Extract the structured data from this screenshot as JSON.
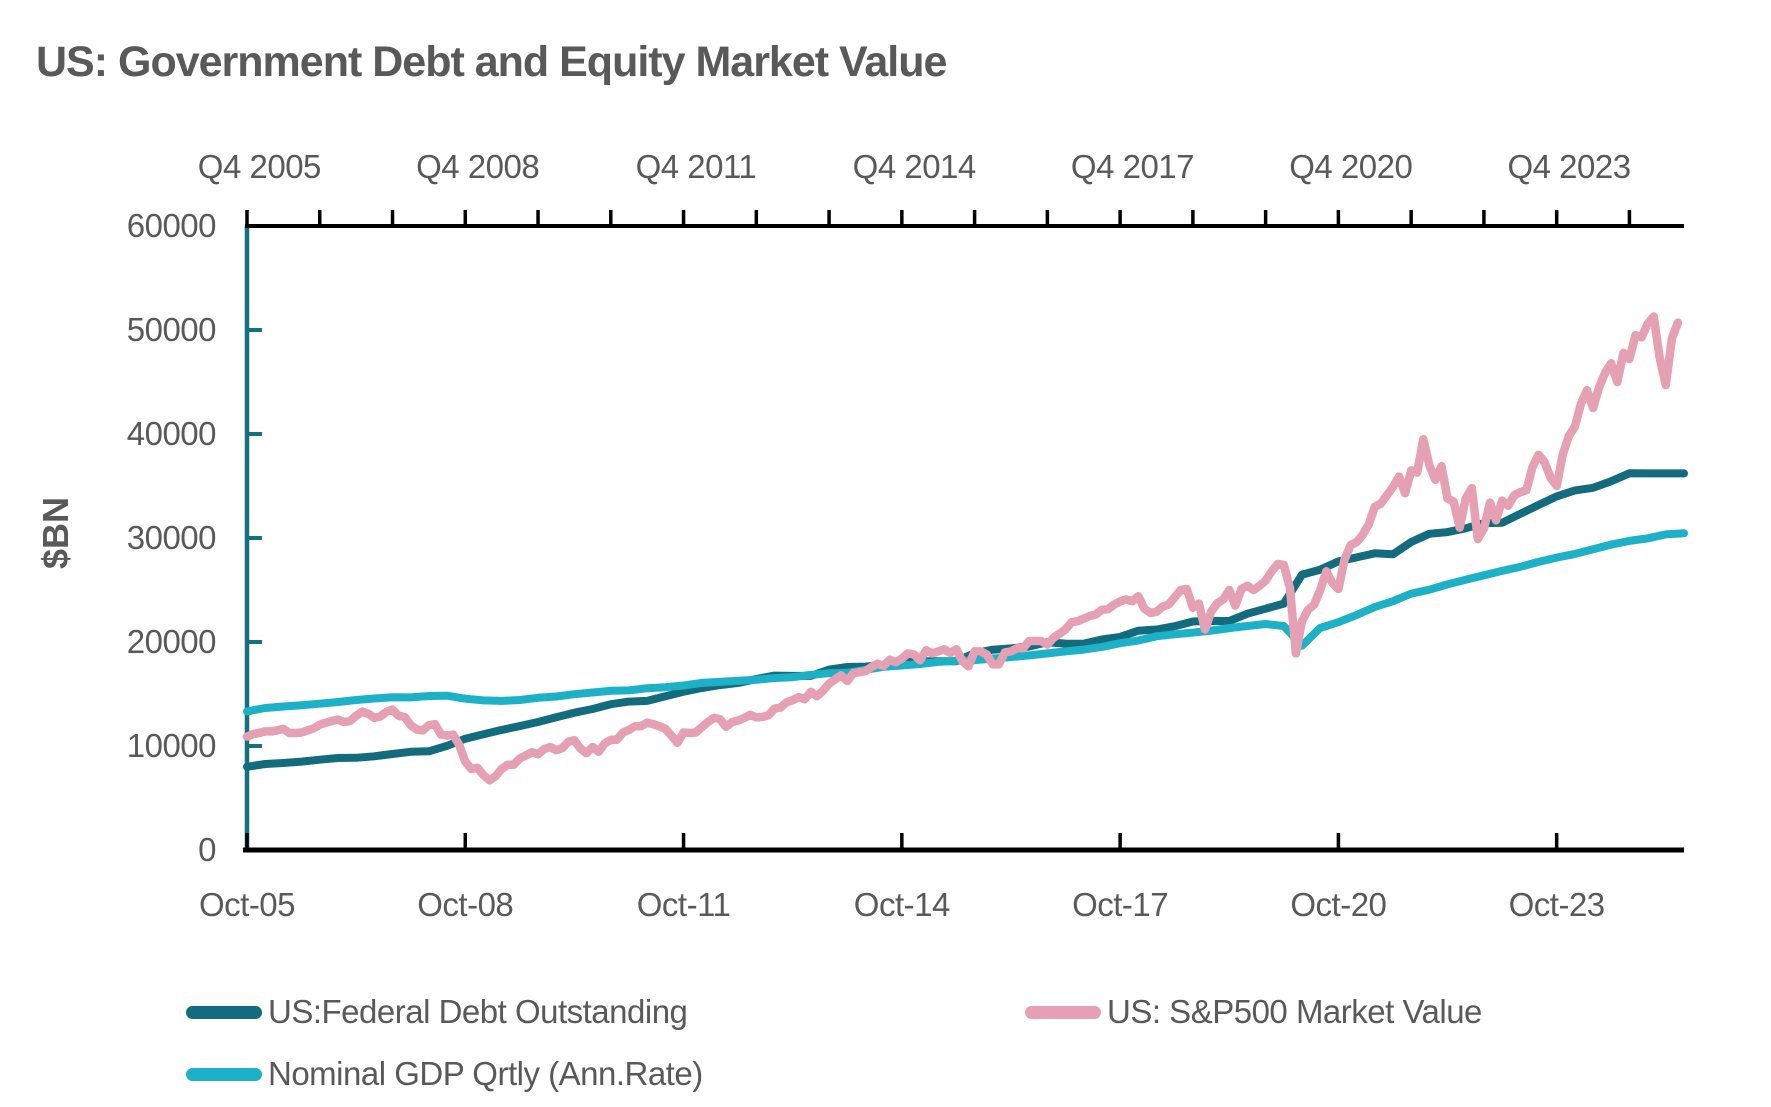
{
  "title": "US: Government Debt and Equity Market Value",
  "colors": {
    "text_gray": "#595959",
    "axis_black": "#000000",
    "y_axis_teal": "#14707f",
    "debt_teal": "#136b7e",
    "sp500_pink": "#e5a0b3",
    "gdp_cyan": "#1db1c8"
  },
  "y_axis": {
    "label": "$BN",
    "tick_values": [
      "0",
      "10000",
      "20000",
      "30000",
      "40000",
      "50000",
      "60000"
    ],
    "min": 0,
    "max": 60000
  },
  "top_axis": {
    "labels": [
      "Q4 2005",
      "Q4 2008",
      "Q4 2011",
      "Q4 2014",
      "Q4 2017",
      "Q4 2020",
      "Q4 2023"
    ],
    "label_interval_years": 3,
    "minor_tick_interval_years": 1
  },
  "bottom_axis": {
    "labels": [
      "Oct-05",
      "Oct-08",
      "Oct-11",
      "Oct-14",
      "Oct-17",
      "Oct-20",
      "Oct-23"
    ],
    "tick_interval_years": 3
  },
  "legend": {
    "items": [
      {
        "label": "US:Federal Debt Outstanding",
        "color": "#136b7e"
      },
      {
        "label": "US: S&P500 Market Value",
        "color": "#e5a0b3"
      },
      {
        "label": "Nominal GDP Qrtly (Ann.Rate)",
        "color": "#1db1c8"
      }
    ]
  },
  "chart_data": {
    "type": "line",
    "title": "US: Government Debt and Equity Market Value",
    "ylabel": "$BN",
    "ylim": [
      0,
      60000
    ],
    "x_unit": "years since Oct-2005",
    "x_range": [
      0,
      19.75
    ],
    "grid": false,
    "legend_position": "bottom",
    "series": [
      {
        "name": "US:Federal Debt Outstanding",
        "color": "#136b7e",
        "start_t": 0,
        "step_years": 0.25,
        "values": [
          8000,
          8270,
          8370,
          8500,
          8680,
          8850,
          8870,
          9010,
          9230,
          9440,
          9490,
          10020,
          10700,
          11130,
          11550,
          11910,
          12310,
          12770,
          13200,
          13560,
          14020,
          14270,
          14340,
          14790,
          15220,
          15580,
          15860,
          16070,
          16430,
          16770,
          16740,
          16740,
          17350,
          17600,
          17630,
          17820,
          18140,
          18150,
          18150,
          18150,
          18920,
          19260,
          19380,
          19570,
          19980,
          19850,
          19840,
          20240,
          20490,
          21090,
          21200,
          21520,
          21970,
          22030,
          22020,
          22720,
          23200,
          23690,
          26480,
          26950,
          27750,
          28130,
          28530,
          28430,
          29620,
          30400,
          30570,
          30930,
          31420,
          31460,
          32330,
          33170,
          34000,
          34580,
          34830,
          35460,
          36220,
          36210,
          36210,
          36210
        ]
      },
      {
        "name": "Nominal GDP Qrtly (Ann.Rate)",
        "color": "#1db1c8",
        "start_t": 0,
        "step_years": 0.25,
        "values": [
          13330,
          13650,
          13800,
          13910,
          14070,
          14230,
          14420,
          14570,
          14690,
          14670,
          14810,
          14840,
          14550,
          14380,
          14340,
          14420,
          14630,
          14760,
          14980,
          15140,
          15310,
          15350,
          15560,
          15650,
          15820,
          16070,
          16160,
          16270,
          16370,
          16540,
          16620,
          16850,
          17000,
          17040,
          17330,
          17620,
          17740,
          17880,
          18090,
          18190,
          18250,
          18400,
          18560,
          18710,
          18900,
          19100,
          19270,
          19530,
          19880,
          20140,
          20550,
          20740,
          20900,
          21100,
          21340,
          21540,
          21730,
          21540,
          19640,
          21360,
          21900,
          22600,
          23370,
          23920,
          24650,
          25030,
          25540,
          25990,
          26410,
          26840,
          27230,
          27700,
          28120,
          28470,
          28910,
          29370,
          29720,
          29960,
          30350,
          30450
        ]
      },
      {
        "name": "US: S&P500 Market Value",
        "color": "#e5a0b3",
        "start_t": 0,
        "step_years": 0.0833333,
        "values": [
          10900,
          11150,
          11250,
          11400,
          11400,
          11500,
          11650,
          11250,
          11250,
          11300,
          11500,
          11700,
          12050,
          12250,
          12400,
          12550,
          12300,
          12400,
          12900,
          13300,
          13100,
          12700,
          12850,
          13300,
          13500,
          12900,
          12800,
          12000,
          11600,
          11500,
          12000,
          12100,
          11100,
          11000,
          11100,
          10100,
          8500,
          7800,
          7900,
          7200,
          6700,
          7100,
          7800,
          8200,
          8200,
          8800,
          9100,
          9400,
          9200,
          9700,
          9900,
          9600,
          9800,
          10400,
          10550,
          9750,
          9300,
          9900,
          9450,
          10250,
          10600,
          10600,
          11300,
          11550,
          11900,
          11900,
          12250,
          12100,
          11900,
          11650,
          11000,
          10300,
          11300,
          11250,
          11300,
          11800,
          12300,
          12700,
          12600,
          11850,
          12300,
          12450,
          12700,
          13000,
          12750,
          12800,
          12950,
          13600,
          13700,
          14200,
          14400,
          14700,
          14500,
          15200,
          14800,
          15300,
          16000,
          16400,
          16800,
          16250,
          17000,
          17100,
          17200,
          17600,
          17900,
          17700,
          18300,
          18050,
          18400,
          18900,
          18800,
          18250,
          19200,
          18900,
          19100,
          19300,
          18950,
          19300,
          18150,
          17650,
          19100,
          19100,
          18800,
          17850,
          17850,
          19000,
          19100,
          19400,
          19400,
          20100,
          20100,
          20100,
          19750,
          20400,
          20800,
          21200,
          21900,
          22000,
          22250,
          22500,
          22650,
          23100,
          23150,
          23600,
          23900,
          24100,
          23900,
          24400,
          23200,
          22800,
          22900,
          23400,
          23600,
          24300,
          25000,
          25100,
          23300,
          23700,
          21200,
          22900,
          23700,
          24100,
          25000,
          23500,
          25100,
          25400,
          25000,
          25400,
          25900,
          26800,
          27500,
          27400,
          25200,
          18900,
          22000,
          23100,
          23600,
          25000,
          26800,
          25700,
          25100,
          27900,
          29300,
          29600,
          30300,
          31300,
          33000,
          33300,
          34100,
          34900,
          35900,
          34300,
          36500,
          36300,
          39500,
          37000,
          35600,
          36900,
          33800,
          33500,
          31000,
          33800,
          34800,
          29900,
          30900,
          33400,
          31700,
          33600,
          33100,
          34100,
          34400,
          34600,
          36800,
          38000,
          37300,
          35800,
          35000,
          38000,
          39800,
          40700,
          42900,
          44200,
          42500,
          44500,
          45900,
          46800,
          45000,
          47800,
          47200,
          49500,
          49300,
          50600,
          51300,
          47300,
          44700,
          49200,
          50700
        ]
      }
    ]
  }
}
